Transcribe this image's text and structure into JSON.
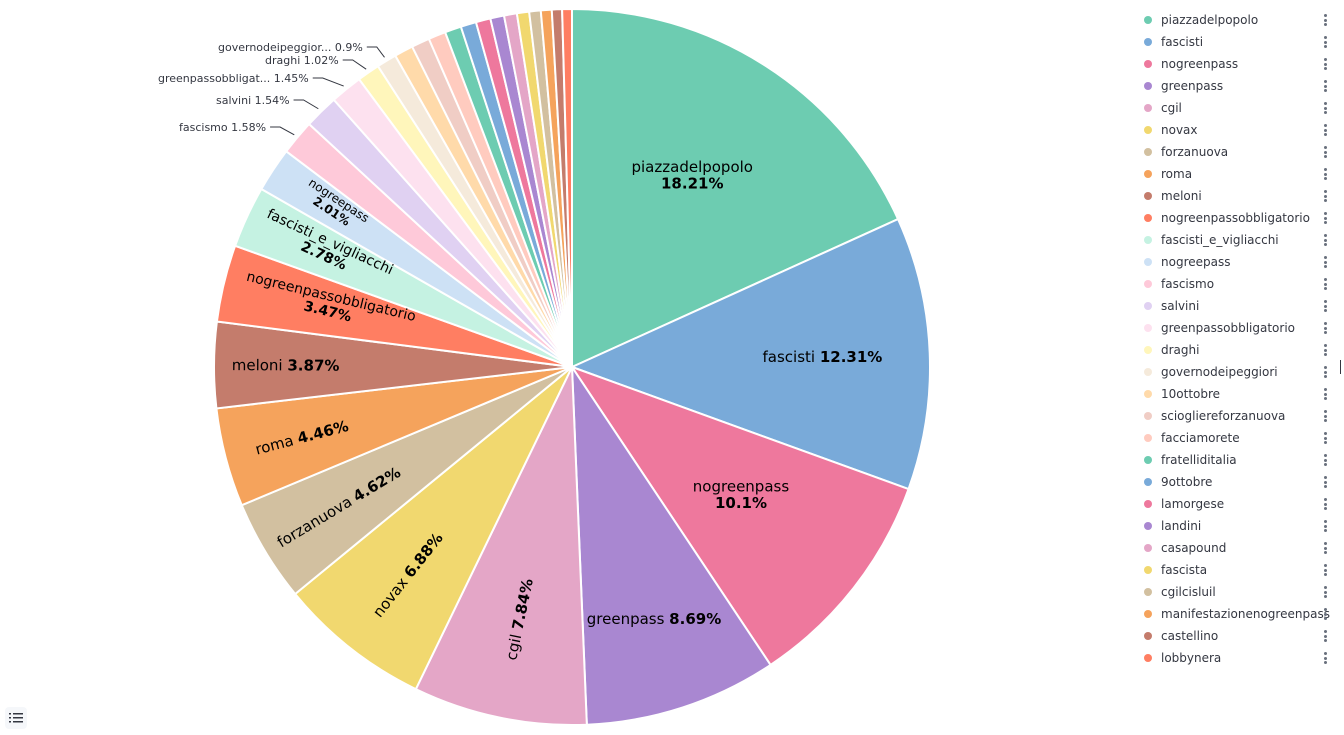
{
  "chart_data": {
    "type": "pie",
    "slices": [
      {
        "label": "piazzadelpopolo",
        "value": 18.21,
        "pct_text": "18.21%",
        "color": "#6dccb1"
      },
      {
        "label": "fascisti",
        "value": 12.31,
        "pct_text": "12.31%",
        "color": "#79aad9"
      },
      {
        "label": "nogreenpass",
        "value": 10.1,
        "pct_text": "10.1%",
        "color": "#ee789d"
      },
      {
        "label": "greenpass",
        "value": 8.69,
        "pct_text": "8.69%",
        "color": "#a987d1"
      },
      {
        "label": "cgil",
        "value": 7.84,
        "pct_text": "7.84%",
        "color": "#e4a6c7"
      },
      {
        "label": "novax",
        "value": 6.88,
        "pct_text": "6.88%",
        "color": "#f1d86f"
      },
      {
        "label": "forzanuova",
        "value": 4.62,
        "pct_text": "4.62%",
        "color": "#d2c0a0"
      },
      {
        "label": "roma",
        "value": 4.46,
        "pct_text": "4.46%",
        "color": "#f5a35c"
      },
      {
        "label": "meloni",
        "value": 3.87,
        "pct_text": "3.87%",
        "color": "#c47c6c"
      },
      {
        "label": "nogreenpassobbligatorio",
        "value": 3.47,
        "pct_text": "3.47%",
        "color": "#ff7e62"
      },
      {
        "label": "fascisti_e_vigliacchi",
        "value": 2.78,
        "pct_text": "2.78%",
        "color": "#c5f2e2"
      },
      {
        "label": "nogreepass",
        "value": 2.01,
        "pct_text": "2.01%",
        "color": "#cde1f5"
      },
      {
        "label": "fascismo",
        "value": 1.58,
        "pct_text": "1.58%",
        "color": "#fec9d9"
      },
      {
        "label": "salvini",
        "value": 1.54,
        "pct_text": "1.54%",
        "color": "#e0d1f2"
      },
      {
        "label": "greenpassobbligatorio",
        "value": 1.45,
        "pct_text": "1.45%",
        "color": "#fde1ef"
      },
      {
        "label": "draghi",
        "value": 1.02,
        "pct_text": "1.02%",
        "color": "#fff6bb"
      },
      {
        "label": "governodeipeggiori",
        "value": 0.9,
        "pct_text": "0.9%",
        "color": "#f5eadb"
      },
      {
        "label": "10ottobre",
        "value": 0.85,
        "pct_text": "",
        "color": "#ffdaaa"
      },
      {
        "label": "sciogliereforzanuova",
        "value": 0.82,
        "pct_text": "",
        "color": "#f0cdc5"
      },
      {
        "label": "facciamorete",
        "value": 0.78,
        "pct_text": "",
        "color": "#ffcbbf"
      },
      {
        "label": "fratelliditalia",
        "value": 0.74,
        "pct_text": "",
        "color": "#6dccb1"
      },
      {
        "label": "9ottobre",
        "value": 0.7,
        "pct_text": "",
        "color": "#79aad9"
      },
      {
        "label": "lamorgese",
        "value": 0.66,
        "pct_text": "",
        "color": "#ee789d"
      },
      {
        "label": "landini",
        "value": 0.62,
        "pct_text": "",
        "color": "#a987d1"
      },
      {
        "label": "casapound",
        "value": 0.58,
        "pct_text": "",
        "color": "#e4a6c7"
      },
      {
        "label": "fascista",
        "value": 0.55,
        "pct_text": "",
        "color": "#f1d86f"
      },
      {
        "label": "cgilcisluil",
        "value": 0.52,
        "pct_text": "",
        "color": "#d2c0a0"
      },
      {
        "label": "manifestazionenogreenpass",
        "value": 0.49,
        "pct_text": "",
        "color": "#f5a35c"
      },
      {
        "label": "castellino",
        "value": 0.46,
        "pct_text": "",
        "color": "#c47c6c"
      },
      {
        "label": "lobbynera",
        "value": 0.44,
        "pct_text": "",
        "color": "#ff7e62"
      }
    ],
    "legend_position": "right",
    "legend_visible": true
  },
  "icons": {
    "legend_toggle": "list-icon",
    "legend_item_menu": "vertical-dots-icon"
  }
}
